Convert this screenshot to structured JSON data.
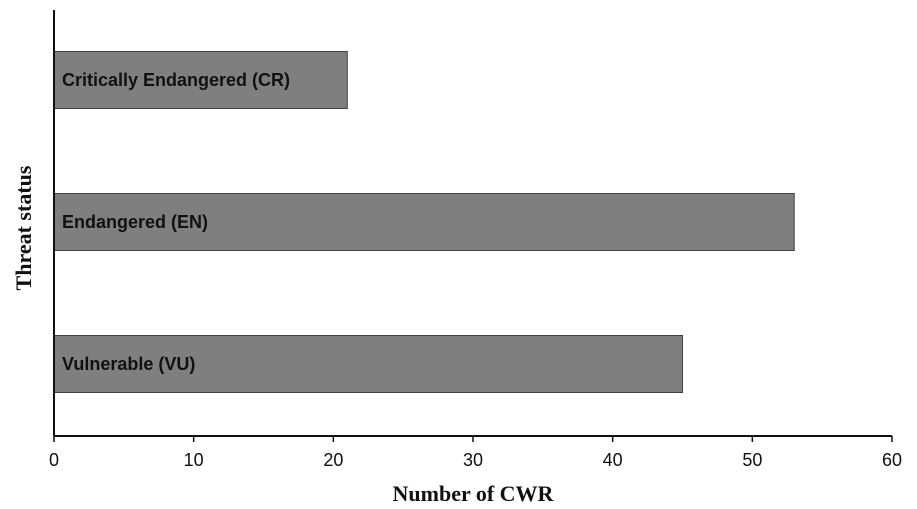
{
  "chart_data": {
    "type": "bar",
    "orientation": "horizontal",
    "categories": [
      "Critically Endangered (CR)",
      "Endangered (EN)",
      "Vulnerable (VU)"
    ],
    "values": [
      21,
      53,
      45
    ],
    "xlabel": "Number of CWR",
    "ylabel": "Threat status",
    "xlim": [
      0,
      60
    ],
    "xticks": [
      0,
      10,
      20,
      30,
      40,
      50,
      60
    ],
    "grid": false,
    "bar_color": "#7f7f7f",
    "bar_edge_color": "#404040"
  }
}
